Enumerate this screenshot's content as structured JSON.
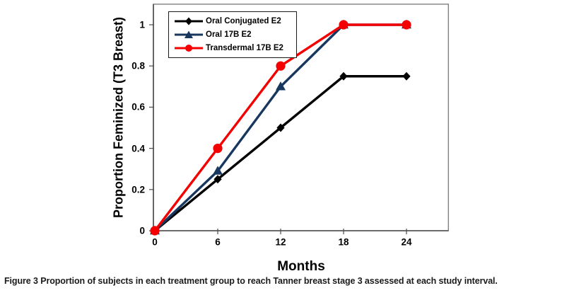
{
  "figure": {
    "caption_label": "Figure 3",
    "caption_text": "Proportion of subjects in each treatment group to reach Tanner breast stage 3 assessed at each study interval."
  },
  "chart_data": {
    "type": "line",
    "title": "",
    "xlabel": "Months",
    "ylabel": "Proportion Feminized (T3 Breast)",
    "x": [
      0,
      6,
      12,
      18,
      24
    ],
    "xtick_labels": [
      "0",
      "6",
      "12",
      "18",
      "24"
    ],
    "ytick_values": [
      0,
      0.2,
      0.4,
      0.6,
      0.8,
      1
    ],
    "ytick_labels": [
      "0",
      "0.2",
      "0.4",
      "0.6",
      "0.8",
      "1"
    ],
    "xlim": [
      0,
      28
    ],
    "ylim": [
      0,
      1.1
    ],
    "grid": false,
    "legend_position": "top-left",
    "axis_color": "#4d4d4d",
    "frame_color": "#808080",
    "series": [
      {
        "name": "Oral Conjugated E2",
        "marker": "diamond",
        "color": "#000000",
        "values": [
          0,
          0.25,
          0.5,
          0.75,
          0.75
        ]
      },
      {
        "name": "Oral 17B E2",
        "marker": "triangle",
        "color": "#17375E",
        "values": [
          0,
          0.29,
          0.7,
          1,
          1
        ]
      },
      {
        "name": "Transdermal 17B E2",
        "marker": "circle",
        "color": "#F40000",
        "values": [
          0,
          0.4,
          0.8,
          1,
          1
        ]
      }
    ]
  }
}
